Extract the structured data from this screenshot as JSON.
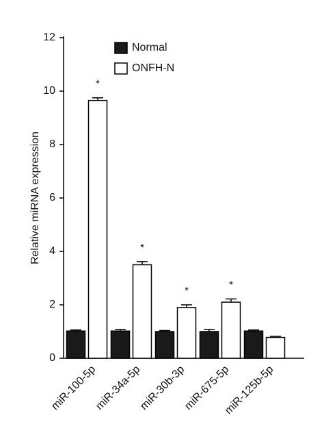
{
  "chart_data": {
    "type": "bar",
    "y_label": "Relative miRNA expression",
    "categories": [
      "miR-100-5p",
      "miR-34a-5p",
      "miR-30b-3p",
      "miR-675-5p",
      "miR-125b-5p"
    ],
    "series": [
      {
        "name": "Normal",
        "color": "#1a1a1a",
        "values": [
          1.02,
          1.02,
          1.0,
          1.0,
          1.02
        ],
        "errors": [
          0.04,
          0.06,
          0.04,
          0.08,
          0.04
        ]
      },
      {
        "name": "ONFH-N",
        "color": "#ffffff",
        "values": [
          9.65,
          3.5,
          1.9,
          2.1,
          0.78
        ],
        "errors": [
          0.1,
          0.12,
          0.1,
          0.12,
          0.04
        ]
      }
    ],
    "significance": [
      "*",
      "*",
      "*",
      "*",
      null
    ],
    "edgecolor": "#000000",
    "ylim": [
      0,
      12
    ],
    "yticks": [
      0,
      2,
      4,
      6,
      8,
      10,
      12
    ],
    "grid": false
  }
}
